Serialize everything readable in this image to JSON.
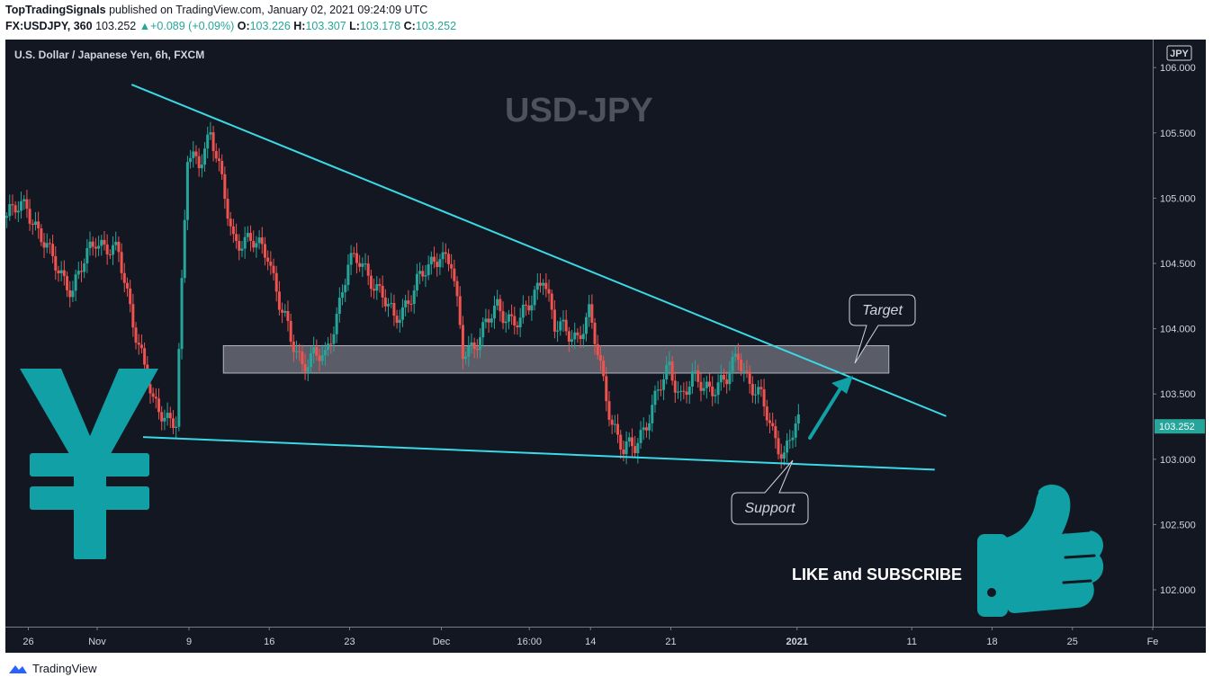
{
  "header": {
    "publisher": "TopTradingSignals",
    "published_text": "published on TradingView.com, January 02, 2021 09:24:09 UTC",
    "symbol": "FX:USDJPY, 360",
    "last": "103.252",
    "change": "+0.089 (+0.09%)",
    "o_label": "O:",
    "o": "103.226",
    "h_label": "H:",
    "h": "103.307",
    "l_label": "L:",
    "l": "103.178",
    "c_label": "C:",
    "c": "103.252"
  },
  "chart_data": {
    "type": "candlestick",
    "title": "U.S. Dollar / Japanese Yen, 6h, FXCM",
    "watermark": "USD-JPY",
    "currency_label": "JPY",
    "last_price_label": "103.252",
    "last_price": 103.252,
    "ylim": [
      101.7,
      106.1
    ],
    "y_ticks": [
      106.0,
      105.5,
      105.0,
      104.5,
      104.0,
      103.5,
      103.0,
      102.5,
      102.0
    ],
    "y_tick_labels": [
      "106.000",
      "105.500",
      "105.000",
      "104.500",
      "104.000",
      "103.500",
      "103.000",
      "102.500",
      "102.000"
    ],
    "x_tick_labels": [
      "26",
      "Nov",
      "9",
      "16",
      "23",
      "Dec",
      "16:00",
      "14",
      "21",
      "2021",
      "11",
      "18",
      "25",
      "Fe"
    ],
    "x_range": [
      "2020-10-24",
      "2021-02-01"
    ],
    "x_tick_dates": [
      "2020-10-26",
      "2020-11-01",
      "2020-11-09",
      "2020-11-16",
      "2020-11-23",
      "2020-12-01",
      "2020-12-08 16:00",
      "2020-12-14",
      "2020-12-21",
      "2021-01-01",
      "2021-01-11",
      "2021-01-18",
      "2021-01-25",
      "2021-02-01"
    ],
    "price_path": [
      [
        "2020-10-24",
        104.85
      ],
      [
        "2020-10-26",
        104.95
      ],
      [
        "2020-10-28",
        104.55
      ],
      [
        "2020-10-30",
        104.3
      ],
      [
        "2020-11-01",
        104.7
      ],
      [
        "2020-11-03",
        104.55
      ],
      [
        "2020-11-05",
        103.8
      ],
      [
        "2020-11-06",
        103.4
      ],
      [
        "2020-11-08",
        103.3
      ],
      [
        "2020-11-09",
        105.3
      ],
      [
        "2020-11-10",
        105.3
      ],
      [
        "2020-11-11",
        105.5
      ],
      [
        "2020-11-12",
        105.1
      ],
      [
        "2020-11-13",
        104.7
      ],
      [
        "2020-11-16",
        104.6
      ],
      [
        "2020-11-17",
        104.2
      ],
      [
        "2020-11-18",
        103.9
      ],
      [
        "2020-11-19",
        103.75
      ],
      [
        "2020-11-20",
        103.8
      ],
      [
        "2020-11-21",
        103.75
      ],
      [
        "2020-11-23",
        104.5
      ],
      [
        "2020-11-24",
        104.5
      ],
      [
        "2020-11-25",
        104.4
      ],
      [
        "2020-11-26",
        104.25
      ],
      [
        "2020-11-27",
        104.05
      ],
      [
        "2020-11-29",
        104.35
      ],
      [
        "2020-11-30",
        104.45
      ],
      [
        "2020-12-01",
        104.6
      ],
      [
        "2020-12-02",
        104.5
      ],
      [
        "2020-12-03",
        103.8
      ],
      [
        "2020-12-04",
        103.9
      ],
      [
        "2020-12-06",
        104.15
      ],
      [
        "2020-12-07",
        104.1
      ],
      [
        "2020-12-08",
        104.05
      ],
      [
        "2020-12-09",
        104.2
      ],
      [
        "2020-12-10",
        104.45
      ],
      [
        "2020-12-11",
        104.0
      ],
      [
        "2020-12-13",
        103.95
      ],
      [
        "2020-12-14",
        104.1
      ],
      [
        "2020-12-15",
        103.7
      ],
      [
        "2020-12-16",
        103.3
      ],
      [
        "2020-12-17",
        103.05
      ],
      [
        "2020-12-18",
        103.1
      ],
      [
        "2020-12-20",
        103.5
      ],
      [
        "2020-12-21",
        103.7
      ],
      [
        "2020-12-22",
        103.5
      ],
      [
        "2020-12-23",
        103.6
      ],
      [
        "2020-12-24",
        103.55
      ],
      [
        "2020-12-26",
        103.6
      ],
      [
        "2020-12-27",
        103.8
      ],
      [
        "2020-12-28",
        103.6
      ],
      [
        "2020-12-29",
        103.45
      ],
      [
        "2020-12-30",
        103.2
      ],
      [
        "2020-12-31",
        103.05
      ],
      [
        "2021-01-01",
        103.25
      ]
    ],
    "annotations": {
      "resistance_line": [
        [
          "2020-11-04",
          105.87
        ],
        [
          "2021-01-14",
          103.33
        ]
      ],
      "support_line": [
        [
          "2020-11-05",
          103.17
        ],
        [
          "2021-01-13",
          102.92
        ]
      ],
      "zone": {
        "from": "2020-11-12",
        "to": "2021-01-09",
        "low": 103.66,
        "high": 103.87
      },
      "target_label": "Target",
      "support_label": "Support",
      "cta_text": "LIKE and SUBSCRIBE"
    },
    "colors": {
      "background": "#131722",
      "up": "#26a69a",
      "down": "#ef5350",
      "trendline": "#3ad9e6",
      "icon": "#10a0a5",
      "watermark": "#4e525c",
      "last_price_tag": "#26a69a"
    }
  },
  "footer": {
    "brand": "TradingView"
  }
}
